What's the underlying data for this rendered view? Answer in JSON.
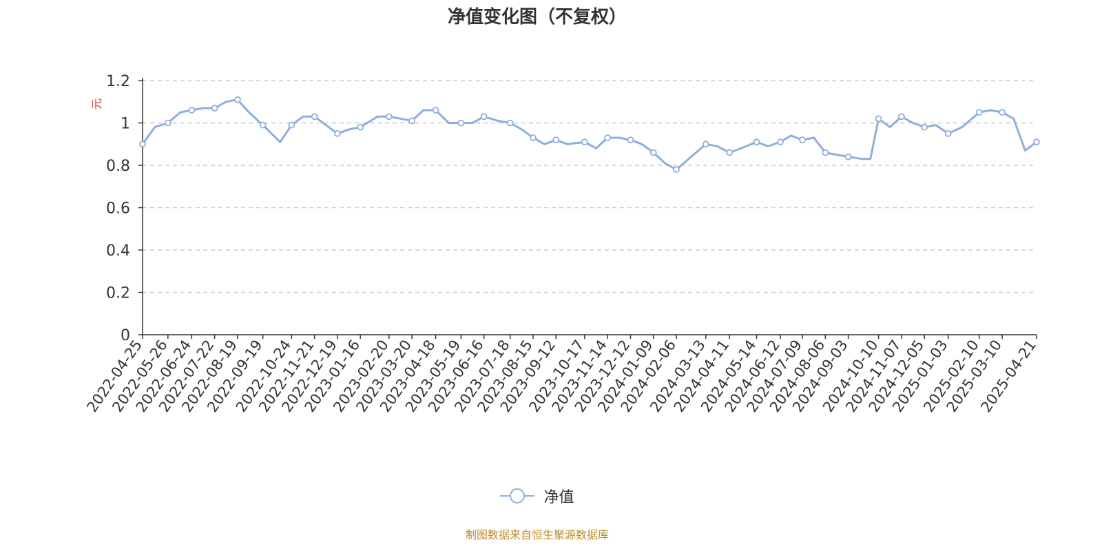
{
  "colors": {
    "line": "#8eaedc",
    "axis": "#333333",
    "grid": "#cccccc",
    "ylabel": "#e03030",
    "source": "#c08b2c"
  },
  "legend": {
    "label": "净值",
    "icon": "line-with-circle-marker"
  },
  "source_note": "制图数据来自恒生聚源数据库",
  "chart_data": {
    "type": "line",
    "title": "净值变化图（不复权）",
    "ylabel": "元",
    "xlabel": "",
    "ylim": [
      0,
      1.2
    ],
    "yticks": [
      "0",
      "0.2",
      "0.4",
      "0.6",
      "0.8",
      "1",
      "1.2"
    ],
    "grid": true,
    "legend_position": "bottom",
    "x_ticks": [
      "2022-04-25",
      "2022-05-26",
      "2022-06-24",
      "2022-07-22",
      "2022-08-19",
      "2022-09-19",
      "2022-10-24",
      "2022-11-21",
      "2022-12-19",
      "2023-01-16",
      "2023-02-20",
      "2023-03-20",
      "2023-04-18",
      "2023-05-19",
      "2023-06-16",
      "2023-07-18",
      "2023-08-15",
      "2023-09-12",
      "2023-10-17",
      "2023-11-14",
      "2023-12-12",
      "2024-01-09",
      "2024-02-06",
      "2024-03-13",
      "2024-04-11",
      "2024-05-14",
      "2024-06-12",
      "2024-07-09",
      "2024-08-06",
      "2024-09-03",
      "2024-10-10",
      "2024-11-07",
      "2024-12-05",
      "2025-01-03",
      "2025-02-10",
      "2025-03-10",
      "2025-04-21"
    ],
    "series": [
      {
        "name": "净值",
        "x": [
          "2022-04-25",
          "2022-05-10",
          "2022-05-26",
          "2022-06-10",
          "2022-06-24",
          "2022-07-08",
          "2022-07-22",
          "2022-08-05",
          "2022-08-19",
          "2022-09-02",
          "2022-09-19",
          "2022-10-10",
          "2022-10-24",
          "2022-11-07",
          "2022-11-21",
          "2022-12-05",
          "2022-12-19",
          "2023-01-03",
          "2023-01-16",
          "2023-02-06",
          "2023-02-20",
          "2023-03-06",
          "2023-03-20",
          "2023-04-03",
          "2023-04-18",
          "2023-05-04",
          "2023-05-19",
          "2023-06-02",
          "2023-06-16",
          "2023-07-03",
          "2023-07-18",
          "2023-08-01",
          "2023-08-15",
          "2023-08-29",
          "2023-09-12",
          "2023-09-26",
          "2023-10-17",
          "2023-10-31",
          "2023-11-14",
          "2023-11-28",
          "2023-12-12",
          "2023-12-26",
          "2024-01-09",
          "2024-01-23",
          "2024-02-06",
          "2024-02-27",
          "2024-03-13",
          "2024-03-27",
          "2024-04-11",
          "2024-04-25",
          "2024-05-14",
          "2024-05-28",
          "2024-06-12",
          "2024-06-25",
          "2024-07-09",
          "2024-07-23",
          "2024-08-06",
          "2024-08-20",
          "2024-09-03",
          "2024-09-20",
          "2024-09-30",
          "2024-10-10",
          "2024-10-24",
          "2024-11-07",
          "2024-11-21",
          "2024-12-05",
          "2024-12-19",
          "2025-01-03",
          "2025-01-20",
          "2025-02-10",
          "2025-02-24",
          "2025-03-10",
          "2025-03-24",
          "2025-04-07",
          "2025-04-21"
        ],
        "y": [
          0.9,
          0.98,
          1.0,
          1.05,
          1.06,
          1.07,
          1.07,
          1.1,
          1.11,
          1.05,
          0.99,
          0.91,
          0.99,
          1.03,
          1.03,
          0.99,
          0.95,
          0.97,
          0.98,
          1.03,
          1.03,
          1.02,
          1.01,
          1.06,
          1.06,
          1.0,
          1.0,
          1.0,
          1.03,
          1.01,
          1.0,
          0.97,
          0.93,
          0.9,
          0.92,
          0.9,
          0.91,
          0.88,
          0.93,
          0.93,
          0.92,
          0.9,
          0.86,
          0.81,
          0.78,
          0.85,
          0.9,
          0.89,
          0.86,
          0.88,
          0.91,
          0.89,
          0.91,
          0.94,
          0.92,
          0.93,
          0.86,
          0.85,
          0.84,
          0.83,
          0.83,
          1.02,
          0.98,
          1.03,
          1.0,
          0.98,
          0.99,
          0.95,
          0.98,
          1.05,
          1.06,
          1.05,
          1.02,
          0.87,
          0.91
        ]
      }
    ]
  }
}
